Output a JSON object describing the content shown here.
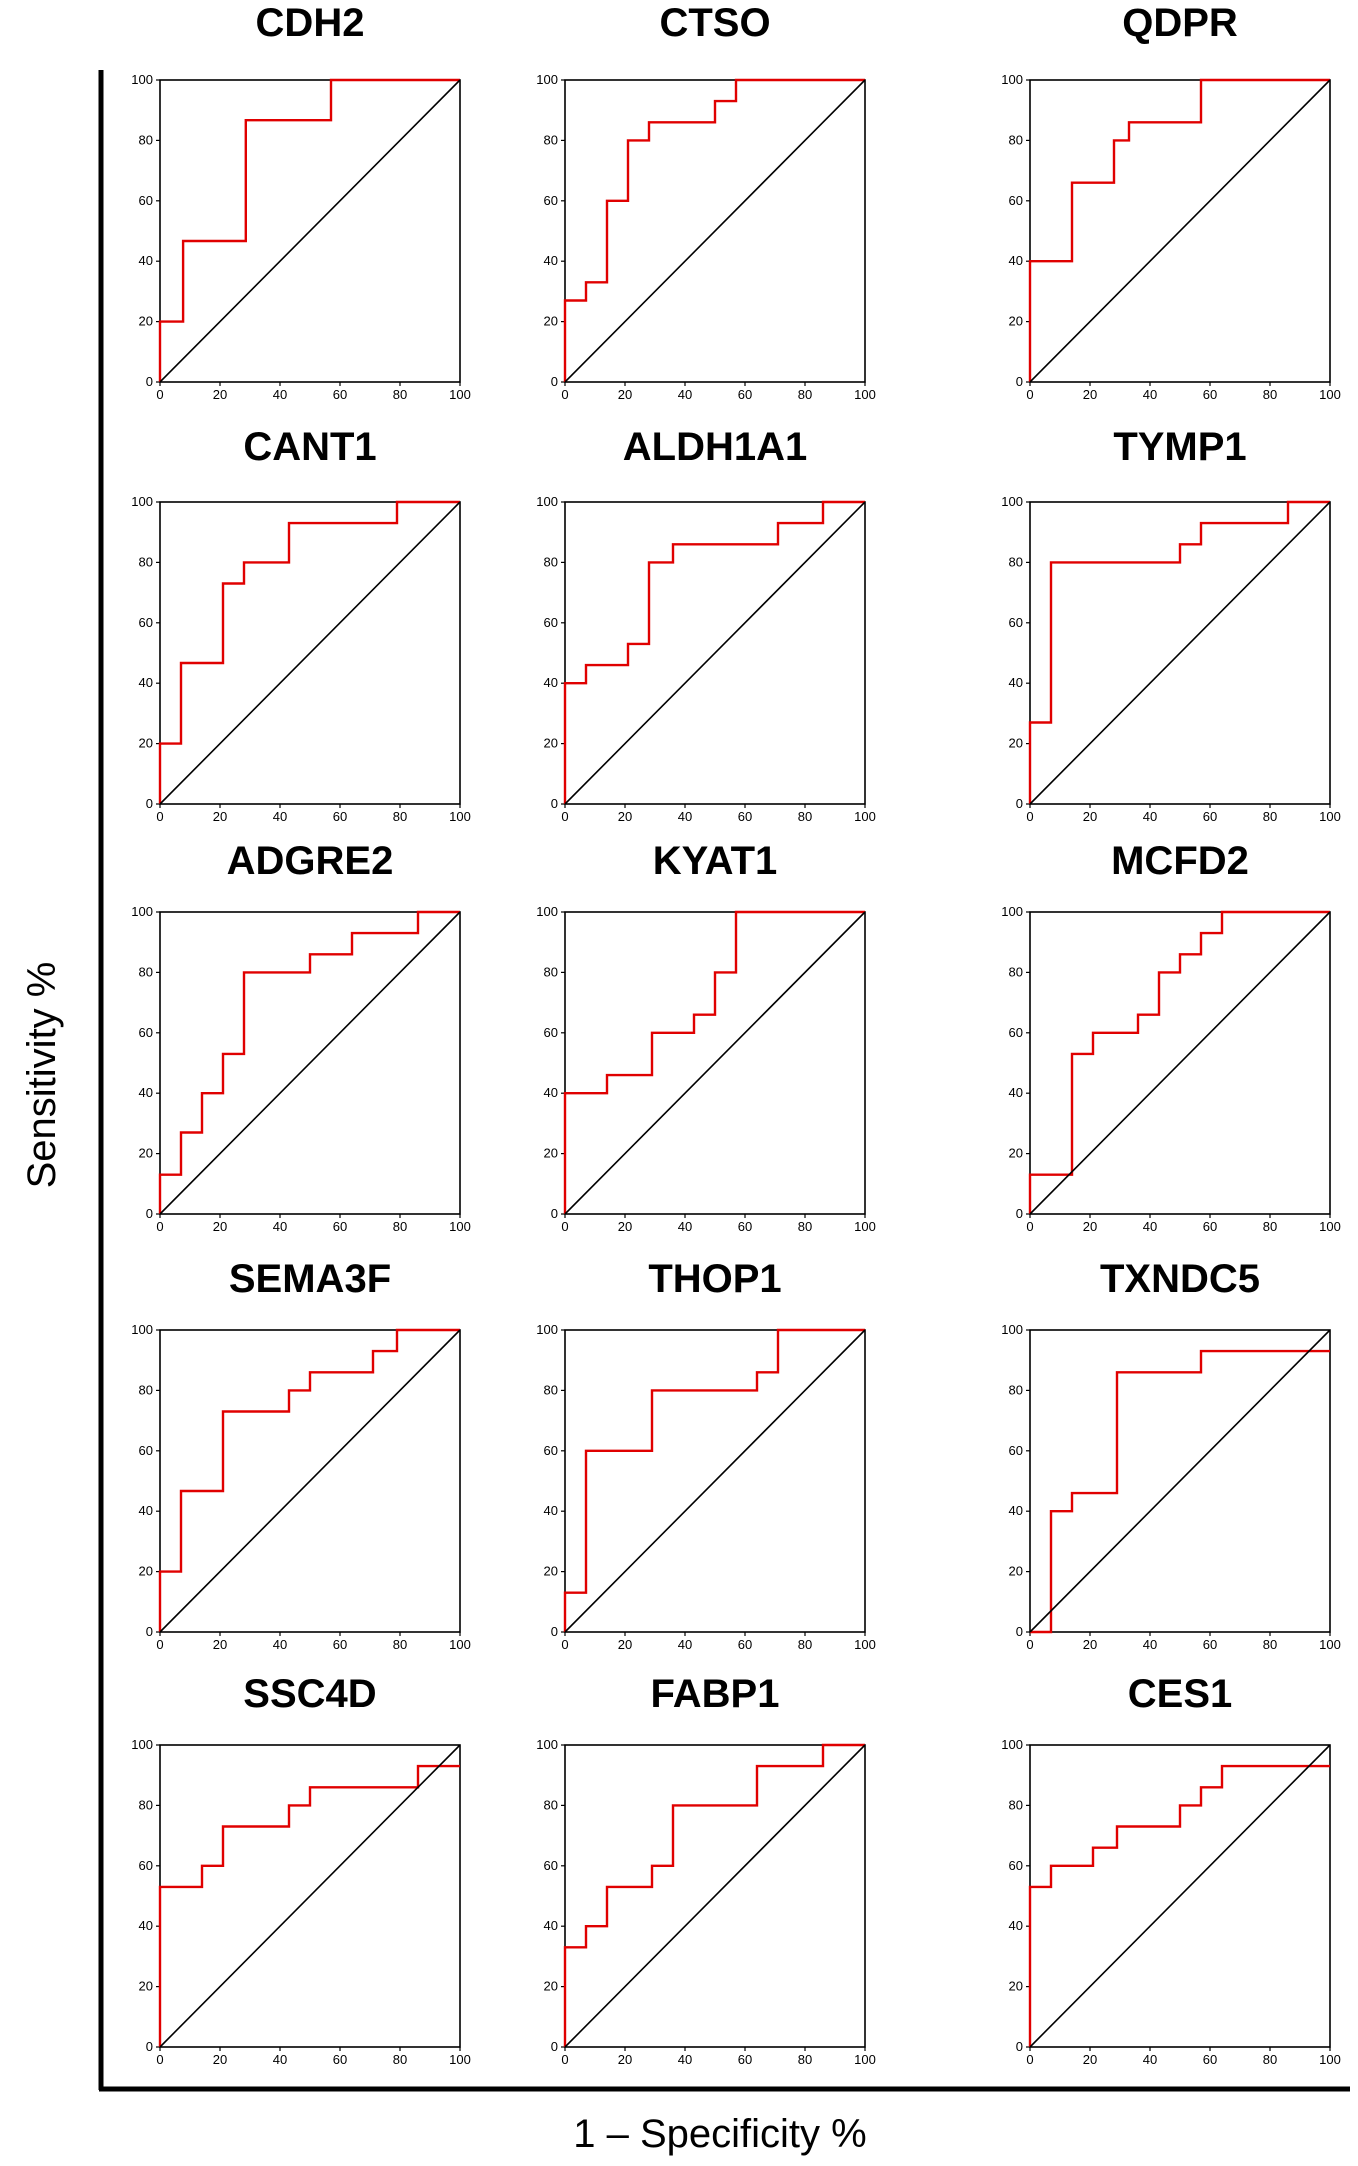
{
  "figure": {
    "ylabel": "Sensitivity %",
    "xlabel": "1 – Specificity %",
    "colors": {
      "roc": "#e00000",
      "reference": "#000000",
      "frame": "#000000"
    }
  },
  "chart_data": [
    {
      "type": "line",
      "title": "CDH2",
      "xlim": [
        0,
        100
      ],
      "ylim": [
        0,
        100
      ],
      "xticks": [
        0,
        20,
        40,
        60,
        80,
        100
      ],
      "yticks": [
        0,
        20,
        40,
        60,
        80,
        100
      ],
      "series": [
        {
          "name": "ROC",
          "x": [
            0,
            0,
            7.7,
            7.7,
            28.6,
            28.6,
            57,
            57,
            100
          ],
          "y": [
            0,
            20,
            20,
            46.7,
            46.7,
            86.7,
            86.7,
            100,
            100
          ]
        },
        {
          "name": "Reference",
          "x": [
            0,
            100
          ],
          "y": [
            0,
            100
          ]
        }
      ]
    },
    {
      "type": "line",
      "title": "CTSO",
      "xlim": [
        0,
        100
      ],
      "ylim": [
        0,
        100
      ],
      "xticks": [
        0,
        20,
        40,
        60,
        80,
        100
      ],
      "yticks": [
        0,
        20,
        40,
        60,
        80,
        100
      ],
      "series": [
        {
          "name": "ROC",
          "x": [
            0,
            0,
            7,
            7,
            14,
            14,
            21,
            21,
            28,
            28,
            50,
            50,
            57,
            57,
            100
          ],
          "y": [
            0,
            27,
            27,
            33,
            33,
            60,
            60,
            80,
            80,
            86,
            86,
            93,
            93,
            100,
            100
          ]
        },
        {
          "name": "Reference",
          "x": [
            0,
            100
          ],
          "y": [
            0,
            100
          ]
        }
      ]
    },
    {
      "type": "line",
      "title": "QDPR",
      "xlim": [
        0,
        100
      ],
      "ylim": [
        0,
        100
      ],
      "xticks": [
        0,
        20,
        40,
        60,
        80,
        100
      ],
      "yticks": [
        0,
        20,
        40,
        60,
        80,
        100
      ],
      "series": [
        {
          "name": "ROC",
          "x": [
            0,
            0,
            14,
            14,
            28,
            28,
            33,
            33,
            36,
            36,
            57,
            57,
            100
          ],
          "y": [
            0,
            40,
            40,
            66,
            66,
            80,
            80,
            86,
            86,
            86,
            86,
            100,
            100
          ]
        },
        {
          "name": "Reference",
          "x": [
            0,
            100
          ],
          "y": [
            0,
            100
          ]
        }
      ]
    },
    {
      "type": "line",
      "title": "CANT1",
      "xlim": [
        0,
        100
      ],
      "ylim": [
        0,
        100
      ],
      "xticks": [
        0,
        20,
        40,
        60,
        80,
        100
      ],
      "yticks": [
        0,
        20,
        40,
        60,
        80,
        100
      ],
      "series": [
        {
          "name": "ROC",
          "x": [
            0,
            0,
            7,
            7,
            21,
            21,
            28,
            28,
            43,
            43,
            79,
            79,
            100
          ],
          "y": [
            0,
            20,
            20,
            46.7,
            46.7,
            73,
            73,
            80,
            80,
            93,
            93,
            100,
            100
          ]
        },
        {
          "name": "Reference",
          "x": [
            0,
            100
          ],
          "y": [
            0,
            100
          ]
        }
      ]
    },
    {
      "type": "line",
      "title": "ALDH1A1",
      "xlim": [
        0,
        100
      ],
      "ylim": [
        0,
        100
      ],
      "xticks": [
        0,
        20,
        40,
        60,
        80,
        100
      ],
      "yticks": [
        0,
        20,
        40,
        60,
        80,
        100
      ],
      "series": [
        {
          "name": "ROC",
          "x": [
            0,
            0,
            7,
            7,
            21,
            21,
            28,
            28,
            36,
            36,
            71,
            71,
            86,
            86,
            100
          ],
          "y": [
            0,
            40,
            40,
            46,
            46,
            53,
            53,
            80,
            80,
            86,
            86,
            93,
            93,
            100,
            100
          ]
        },
        {
          "name": "Reference",
          "x": [
            0,
            100
          ],
          "y": [
            0,
            100
          ]
        }
      ]
    },
    {
      "type": "line",
      "title": "TYMP1",
      "xlim": [
        0,
        100
      ],
      "ylim": [
        0,
        100
      ],
      "xticks": [
        0,
        20,
        40,
        60,
        80,
        100
      ],
      "yticks": [
        0,
        20,
        40,
        60,
        80,
        100
      ],
      "series": [
        {
          "name": "ROC",
          "x": [
            0,
            0,
            7,
            7,
            50,
            50,
            57,
            57,
            86,
            86,
            100
          ],
          "y": [
            0,
            27,
            27,
            80,
            80,
            86,
            86,
            93,
            93,
            100,
            100
          ]
        },
        {
          "name": "Reference",
          "x": [
            0,
            100
          ],
          "y": [
            0,
            100
          ]
        }
      ]
    },
    {
      "type": "line",
      "title": "ADGRE2",
      "xlim": [
        0,
        100
      ],
      "ylim": [
        0,
        100
      ],
      "xticks": [
        0,
        20,
        40,
        60,
        80,
        100
      ],
      "yticks": [
        0,
        20,
        40,
        60,
        80,
        100
      ],
      "series": [
        {
          "name": "ROC",
          "x": [
            0,
            0,
            7,
            7,
            14,
            14,
            21,
            21,
            28,
            28,
            50,
            50,
            64,
            64,
            86,
            86,
            100
          ],
          "y": [
            0,
            13,
            13,
            27,
            27,
            40,
            40,
            53,
            53,
            80,
            80,
            86,
            86,
            93,
            93,
            100,
            100
          ]
        },
        {
          "name": "Reference",
          "x": [
            0,
            100
          ],
          "y": [
            0,
            100
          ]
        }
      ]
    },
    {
      "type": "line",
      "title": "KYAT1",
      "xlim": [
        0,
        100
      ],
      "ylim": [
        0,
        100
      ],
      "xticks": [
        0,
        20,
        40,
        60,
        80,
        100
      ],
      "yticks": [
        0,
        20,
        40,
        60,
        80,
        100
      ],
      "series": [
        {
          "name": "ROC",
          "x": [
            0,
            0,
            14,
            14,
            29,
            29,
            43,
            43,
            50,
            50,
            57,
            57,
            100
          ],
          "y": [
            0,
            40,
            40,
            46,
            46,
            60,
            60,
            66,
            66,
            80,
            80,
            100,
            100
          ]
        },
        {
          "name": "Reference",
          "x": [
            0,
            100
          ],
          "y": [
            0,
            100
          ]
        }
      ]
    },
    {
      "type": "line",
      "title": "MCFD2",
      "xlim": [
        0,
        100
      ],
      "ylim": [
        0,
        100
      ],
      "xticks": [
        0,
        20,
        40,
        60,
        80,
        100
      ],
      "yticks": [
        0,
        20,
        40,
        60,
        80,
        100
      ],
      "series": [
        {
          "name": "ROC",
          "x": [
            0,
            0,
            14,
            14,
            21,
            21,
            36,
            36,
            43,
            43,
            50,
            50,
            57,
            57,
            64,
            64,
            100
          ],
          "y": [
            0,
            13,
            13,
            53,
            53,
            60,
            60,
            66,
            66,
            80,
            80,
            86,
            86,
            93,
            93,
            100,
            100
          ]
        },
        {
          "name": "Reference",
          "x": [
            0,
            100
          ],
          "y": [
            0,
            100
          ]
        }
      ]
    },
    {
      "type": "line",
      "title": "SEMA3F",
      "xlim": [
        0,
        100
      ],
      "ylim": [
        0,
        100
      ],
      "xticks": [
        0,
        20,
        40,
        60,
        80,
        100
      ],
      "yticks": [
        0,
        20,
        40,
        60,
        80,
        100
      ],
      "series": [
        {
          "name": "ROC",
          "x": [
            0,
            0,
            7,
            7,
            21,
            21,
            43,
            43,
            50,
            50,
            71,
            71,
            79,
            79,
            100
          ],
          "y": [
            0,
            20,
            20,
            46.7,
            46.7,
            73,
            73,
            80,
            80,
            86,
            86,
            93,
            93,
            100,
            100
          ]
        },
        {
          "name": "Reference",
          "x": [
            0,
            100
          ],
          "y": [
            0,
            100
          ]
        }
      ]
    },
    {
      "type": "line",
      "title": "THOP1",
      "xlim": [
        0,
        100
      ],
      "ylim": [
        0,
        100
      ],
      "xticks": [
        0,
        20,
        40,
        60,
        80,
        100
      ],
      "yticks": [
        0,
        20,
        40,
        60,
        80,
        100
      ],
      "series": [
        {
          "name": "ROC",
          "x": [
            0,
            0,
            7,
            7,
            29,
            29,
            64,
            64,
            71,
            71,
            100
          ],
          "y": [
            0,
            13,
            13,
            60,
            60,
            80,
            80,
            86,
            86,
            100,
            100
          ]
        },
        {
          "name": "Reference",
          "x": [
            0,
            100
          ],
          "y": [
            0,
            100
          ]
        }
      ]
    },
    {
      "type": "line",
      "title": "TXNDC5",
      "xlim": [
        0,
        100
      ],
      "ylim": [
        0,
        100
      ],
      "xticks": [
        0,
        20,
        40,
        60,
        80,
        100
      ],
      "yticks": [
        0,
        20,
        40,
        60,
        80,
        100
      ],
      "series": [
        {
          "name": "ROC",
          "x": [
            0,
            7,
            7,
            14,
            14,
            29,
            29,
            57,
            57,
            100
          ],
          "y": [
            0,
            0,
            40,
            40,
            46,
            46,
            86,
            86,
            93,
            93
          ]
        },
        {
          "name": "Reference",
          "x": [
            0,
            100
          ],
          "y": [
            0,
            100
          ]
        }
      ]
    },
    {
      "type": "line",
      "title": "SSC4D",
      "xlim": [
        0,
        100
      ],
      "ylim": [
        0,
        100
      ],
      "xticks": [
        0,
        20,
        40,
        60,
        80,
        100
      ],
      "yticks": [
        0,
        20,
        40,
        60,
        80,
        100
      ],
      "series": [
        {
          "name": "ROC",
          "x": [
            0,
            0,
            14,
            14,
            21,
            21,
            43,
            43,
            50,
            50,
            86,
            86,
            100
          ],
          "y": [
            0,
            53,
            53,
            60,
            60,
            73,
            73,
            80,
            80,
            86,
            86,
            93,
            93
          ]
        },
        {
          "name": "Reference",
          "x": [
            0,
            100
          ],
          "y": [
            0,
            100
          ]
        }
      ]
    },
    {
      "type": "line",
      "title": "FABP1",
      "xlim": [
        0,
        100
      ],
      "ylim": [
        0,
        100
      ],
      "xticks": [
        0,
        20,
        40,
        60,
        80,
        100
      ],
      "yticks": [
        0,
        20,
        40,
        60,
        80,
        100
      ],
      "series": [
        {
          "name": "ROC",
          "x": [
            0,
            0,
            7,
            7,
            14,
            14,
            29,
            29,
            36,
            36,
            64,
            64,
            86,
            86,
            100
          ],
          "y": [
            0,
            33,
            33,
            40,
            40,
            53,
            53,
            60,
            60,
            80,
            80,
            93,
            93,
            100,
            100
          ]
        },
        {
          "name": "Reference",
          "x": [
            0,
            100
          ],
          "y": [
            0,
            100
          ]
        }
      ]
    },
    {
      "type": "line",
      "title": "CES1",
      "xlim": [
        0,
        100
      ],
      "ylim": [
        0,
        100
      ],
      "xticks": [
        0,
        20,
        40,
        60,
        80,
        100
      ],
      "yticks": [
        0,
        20,
        40,
        60,
        80,
        100
      ],
      "series": [
        {
          "name": "ROC",
          "x": [
            0,
            0,
            7,
            7,
            21,
            21,
            29,
            29,
            50,
            50,
            57,
            57,
            64,
            64,
            71,
            71,
            100
          ],
          "y": [
            0,
            53,
            53,
            60,
            60,
            66,
            66,
            73,
            73,
            80,
            80,
            86,
            86,
            93,
            93,
            93,
            93
          ]
        },
        {
          "name": "Reference",
          "x": [
            0,
            100
          ],
          "y": [
            0,
            100
          ]
        }
      ]
    }
  ]
}
